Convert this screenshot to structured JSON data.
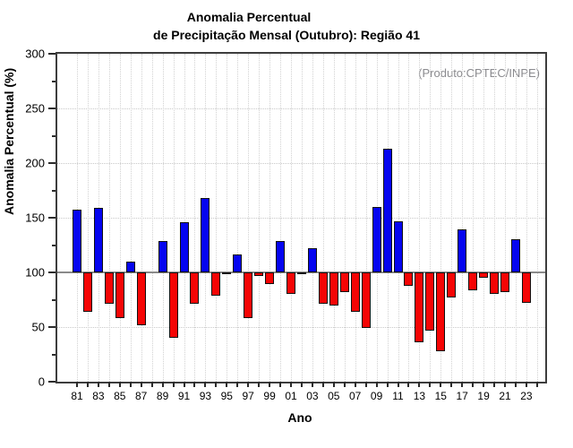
{
  "title": {
    "line1": "Anomalia Percentual",
    "line2": "de Precipitação Mensal (Outubro): Região 41"
  },
  "annotation": "(Produto:CPTEC/INPE)",
  "chart_data": {
    "type": "bar",
    "title": "Anomalia Percentual de Precipitação Mensal (Outubro): Região 41",
    "xlabel": "Ano",
    "ylabel": "Anomalia Percentual (%)",
    "ylim": [
      0,
      300
    ],
    "y_major_ticks": [
      0,
      50,
      100,
      150,
      200,
      250,
      300
    ],
    "y_minor_step": 25,
    "baseline": 100,
    "grid": "dotted, vertical every year, horizontal every 50",
    "legend": "none",
    "colors": {
      "above_baseline": "#0505f0",
      "below_baseline": "#f50505",
      "baseline_line": "#8a8a8a"
    },
    "years": [
      1981,
      1982,
      1983,
      1984,
      1985,
      1986,
      1987,
      1988,
      1989,
      1990,
      1991,
      1992,
      1993,
      1994,
      1995,
      1996,
      1997,
      1998,
      1999,
      2000,
      2001,
      2002,
      2003,
      2004,
      2005,
      2006,
      2007,
      2008,
      2009,
      2010,
      2011,
      2012,
      2013,
      2014,
      2015,
      2016,
      2017,
      2018,
      2019,
      2020,
      2021,
      2022,
      2023
    ],
    "values": [
      157,
      64,
      159,
      71,
      58,
      110,
      52,
      100,
      129,
      40,
      146,
      71,
      168,
      79,
      98,
      116,
      58,
      97,
      89,
      129,
      80,
      98,
      122,
      71,
      70,
      82,
      64,
      49,
      160,
      213,
      147,
      88,
      36,
      47,
      28,
      77,
      139,
      84,
      95,
      80,
      82,
      130,
      72
    ],
    "x_tick_labels": [
      "81",
      "83",
      "85",
      "87",
      "89",
      "91",
      "93",
      "95",
      "97",
      "99",
      "01",
      "03",
      "05",
      "07",
      "09",
      "11",
      "13",
      "15",
      "17",
      "19",
      "21",
      "23"
    ]
  }
}
